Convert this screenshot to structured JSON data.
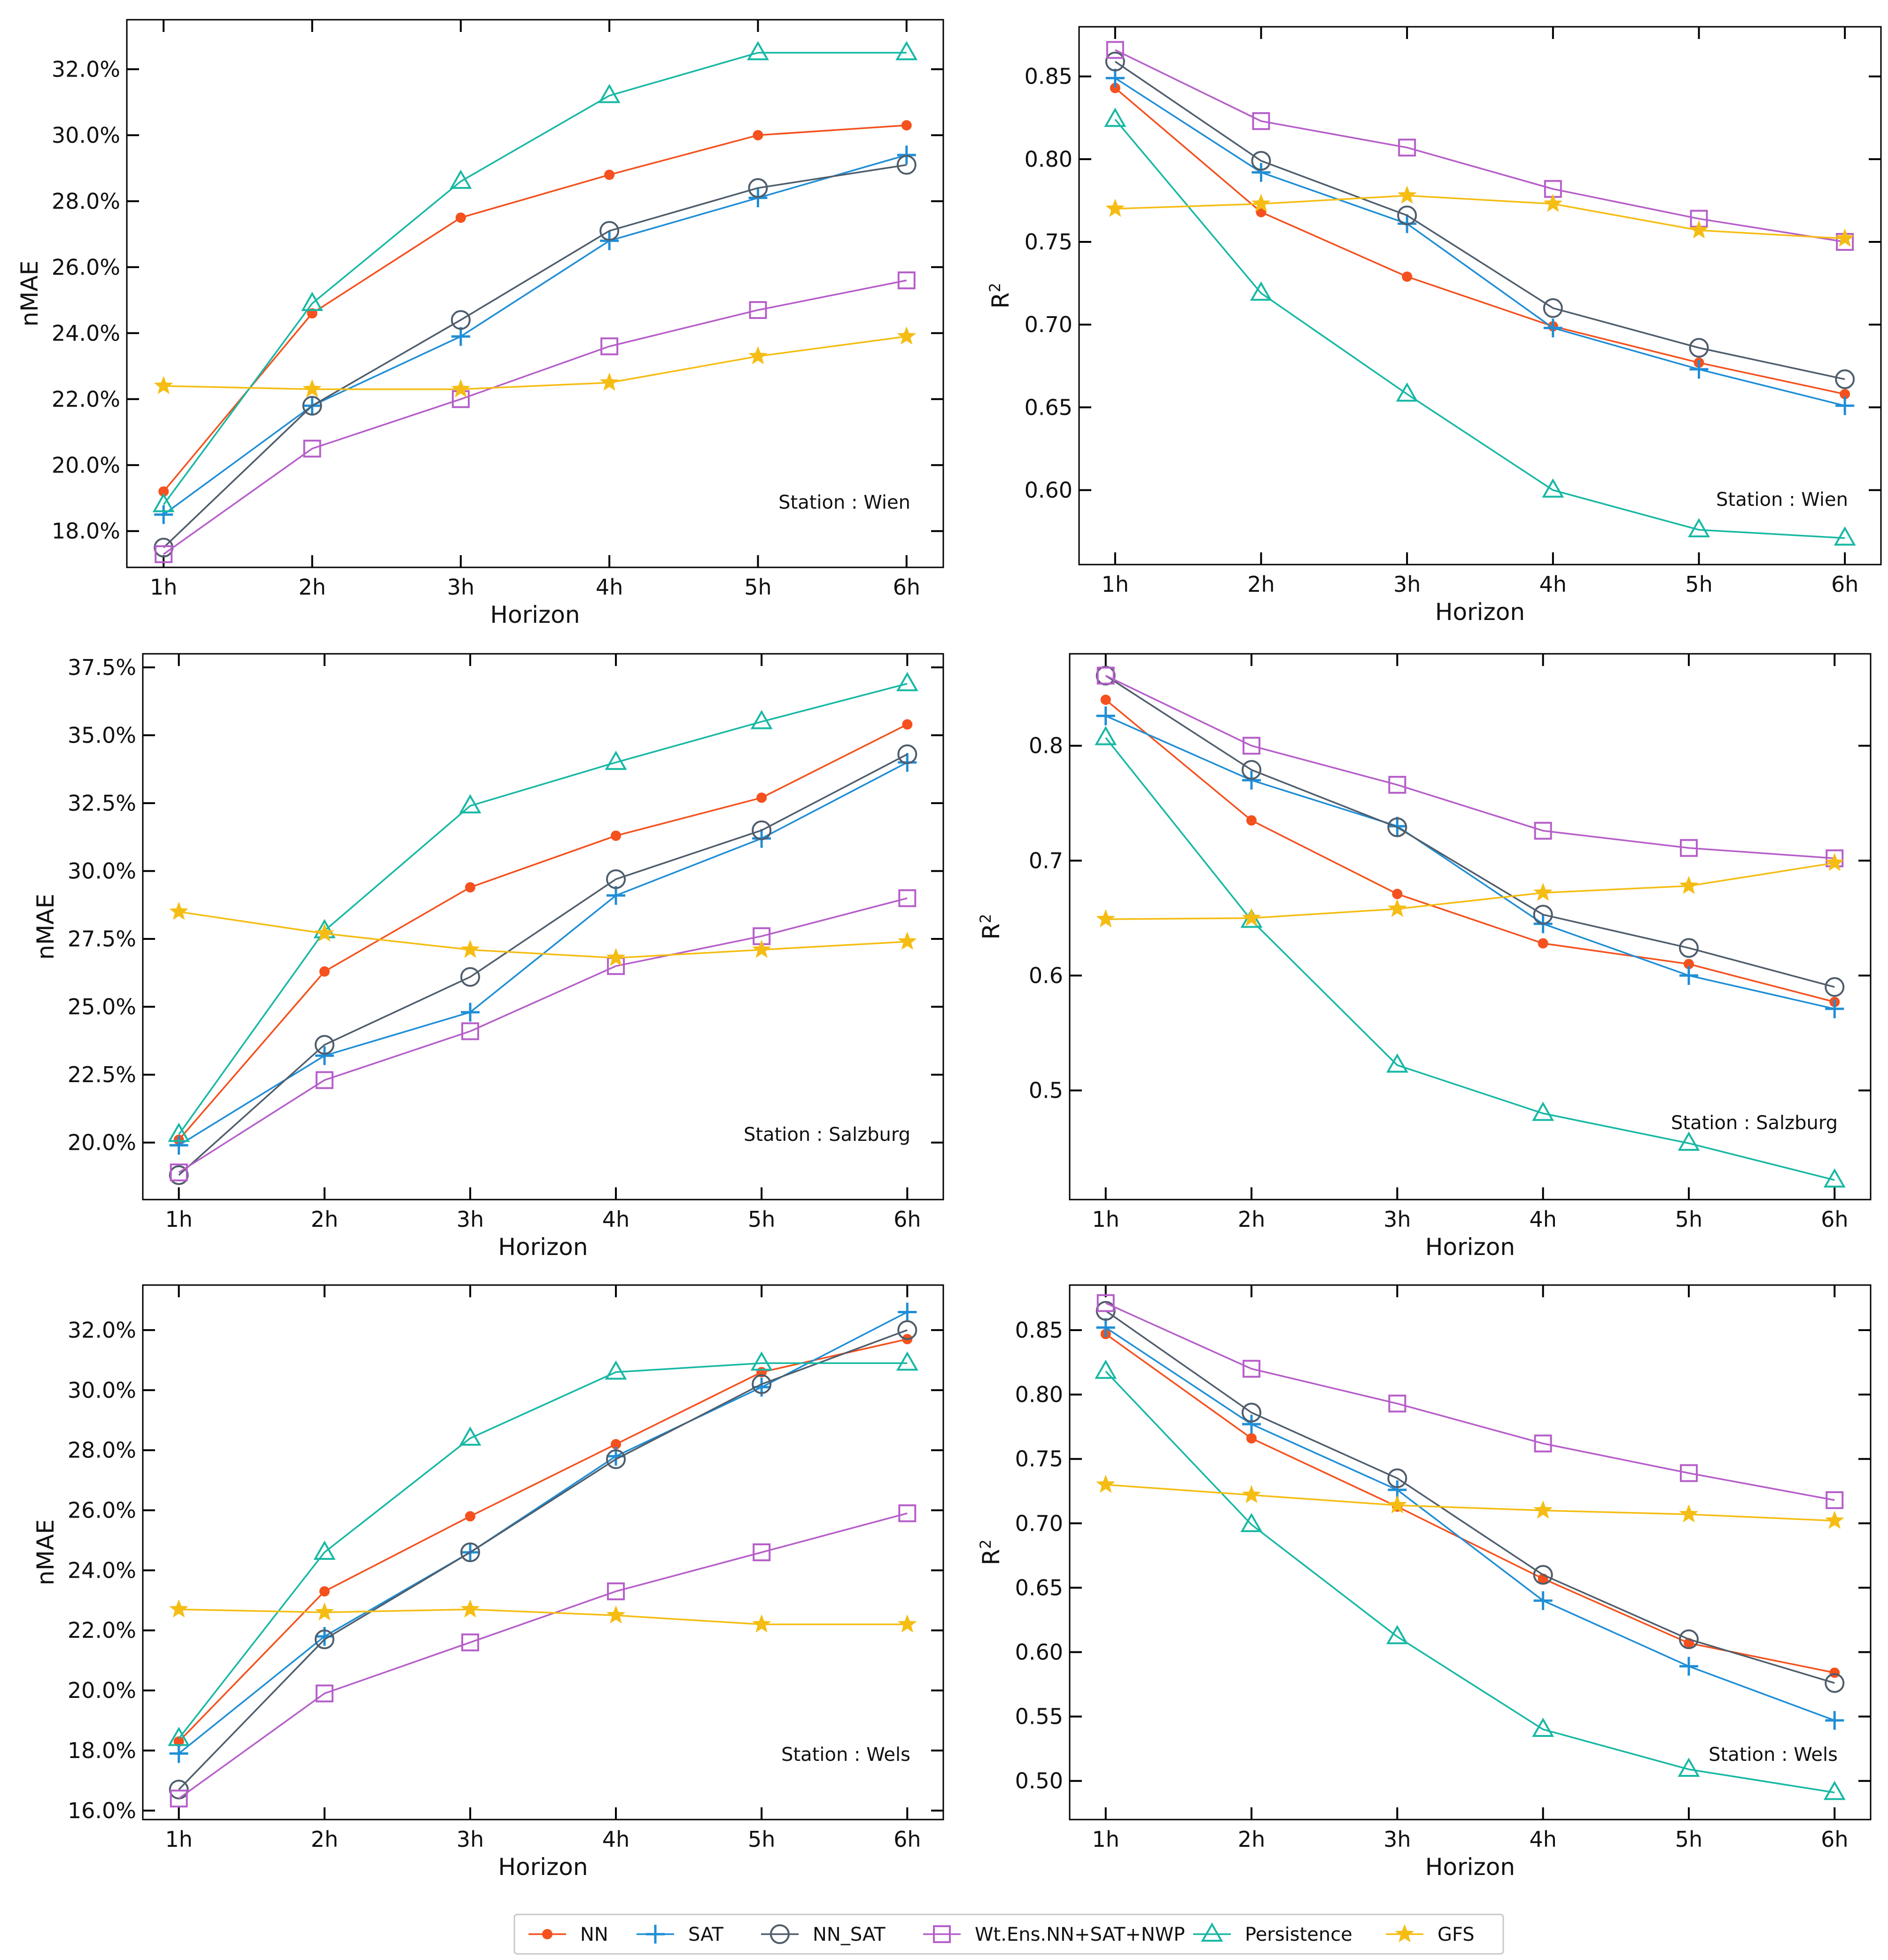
{
  "series_styles": [
    {
      "name": "NN",
      "color": "#f4511e",
      "marker": "dot"
    },
    {
      "name": "SAT",
      "color": "#1f8ed6",
      "marker": "plus"
    },
    {
      "name": "NN_SAT",
      "color": "#4f5d6b",
      "marker": "circle"
    },
    {
      "name": "Wt.Ens.NN+SAT+NWP",
      "color": "#b65ec9",
      "marker": "square"
    },
    {
      "name": "Persistence",
      "color": "#17b8a4",
      "marker": "triangle"
    },
    {
      "name": "GFS",
      "color": "#f5bd14",
      "marker": "star"
    }
  ],
  "chart_data": [
    {
      "type": "line",
      "id": "wien-nmae",
      "station": "Station : Wien",
      "xlabel": "Horizon",
      "ylabel": "nMAE",
      "categories": [
        "1h",
        "2h",
        "3h",
        "4h",
        "5h",
        "6h"
      ],
      "ylim": [
        16.9,
        33.5
      ],
      "yticks": [
        18,
        20,
        22,
        24,
        26,
        28,
        30,
        32
      ],
      "ytick_labels": [
        "18.0%",
        "20.0%",
        "22.0%",
        "24.0%",
        "26.0%",
        "28.0%",
        "30.0%",
        "32.0%"
      ],
      "series": [
        {
          "name": "NN",
          "values": [
            19.2,
            24.6,
            27.5,
            28.8,
            30.0,
            30.3
          ]
        },
        {
          "name": "SAT",
          "values": [
            18.5,
            21.8,
            23.9,
            26.8,
            28.1,
            29.4
          ]
        },
        {
          "name": "NN_SAT",
          "values": [
            17.5,
            21.8,
            24.4,
            27.1,
            28.4,
            29.1
          ]
        },
        {
          "name": "Wt.Ens.NN+SAT+NWP",
          "values": [
            17.3,
            20.5,
            22.0,
            23.6,
            24.7,
            25.6
          ]
        },
        {
          "name": "Persistence",
          "values": [
            18.8,
            24.9,
            28.6,
            31.2,
            32.5,
            32.5
          ]
        },
        {
          "name": "GFS",
          "values": [
            22.4,
            22.3,
            22.3,
            22.5,
            23.3,
            23.9
          ]
        }
      ]
    },
    {
      "type": "line",
      "id": "wien-r2",
      "station": "Station : Wien",
      "xlabel": "Horizon",
      "ylabel": "R",
      "categories": [
        "1h",
        "2h",
        "3h",
        "4h",
        "5h",
        "6h"
      ],
      "ylim": [
        0.555,
        0.88
      ],
      "yticks": [
        0.6,
        0.65,
        0.7,
        0.75,
        0.8,
        0.85
      ],
      "ytick_labels": [
        "0.60",
        "0.65",
        "0.70",
        "0.75",
        "0.80",
        "0.85"
      ],
      "series": [
        {
          "name": "NN",
          "values": [
            0.843,
            0.768,
            0.729,
            0.699,
            0.677,
            0.658
          ]
        },
        {
          "name": "SAT",
          "values": [
            0.849,
            0.792,
            0.761,
            0.698,
            0.673,
            0.651
          ]
        },
        {
          "name": "NN_SAT",
          "values": [
            0.859,
            0.799,
            0.766,
            0.71,
            0.686,
            0.667
          ]
        },
        {
          "name": "Wt.Ens.NN+SAT+NWP",
          "values": [
            0.866,
            0.823,
            0.807,
            0.782,
            0.764,
            0.75
          ]
        },
        {
          "name": "Persistence",
          "values": [
            0.824,
            0.719,
            0.658,
            0.6,
            0.576,
            0.571
          ]
        },
        {
          "name": "GFS",
          "values": [
            0.77,
            0.773,
            0.778,
            0.773,
            0.757,
            0.752
          ]
        }
      ]
    },
    {
      "type": "line",
      "id": "salzburg-nmae",
      "station": "Station : Salzburg",
      "xlabel": "Horizon",
      "ylabel": "nMAE",
      "categories": [
        "1h",
        "2h",
        "3h",
        "4h",
        "5h",
        "6h"
      ],
      "ylim": [
        17.9,
        38.0
      ],
      "yticks": [
        20,
        22.5,
        25,
        27.5,
        30,
        32.5,
        35,
        37.5
      ],
      "ytick_labels": [
        "20.0%",
        "22.5%",
        "25.0%",
        "27.5%",
        "30.0%",
        "32.5%",
        "35.0%",
        "37.5%"
      ],
      "series": [
        {
          "name": "NN",
          "values": [
            20.1,
            26.3,
            29.4,
            31.3,
            32.7,
            35.4
          ]
        },
        {
          "name": "SAT",
          "values": [
            19.9,
            23.2,
            24.8,
            29.1,
            31.2,
            34.0
          ]
        },
        {
          "name": "NN_SAT",
          "values": [
            18.8,
            23.6,
            26.1,
            29.7,
            31.5,
            34.3
          ]
        },
        {
          "name": "Wt.Ens.NN+SAT+NWP",
          "values": [
            18.9,
            22.3,
            24.1,
            26.5,
            27.6,
            29.0
          ]
        },
        {
          "name": "Persistence",
          "values": [
            20.3,
            27.8,
            32.4,
            34.0,
            35.5,
            36.9
          ]
        },
        {
          "name": "GFS",
          "values": [
            28.5,
            27.7,
            27.1,
            26.8,
            27.1,
            27.4
          ]
        }
      ]
    },
    {
      "type": "line",
      "id": "salzburg-r2",
      "station": "Station : Salzburg",
      "xlabel": "Horizon",
      "ylabel": "R",
      "categories": [
        "1h",
        "2h",
        "3h",
        "4h",
        "5h",
        "6h"
      ],
      "ylim": [
        0.405,
        0.88
      ],
      "yticks": [
        0.5,
        0.6,
        0.7,
        0.8
      ],
      "ytick_labels": [
        "0.5",
        "0.6",
        "0.7",
        "0.8"
      ],
      "series": [
        {
          "name": "NN",
          "values": [
            0.84,
            0.735,
            0.671,
            0.628,
            0.61,
            0.577
          ]
        },
        {
          "name": "SAT",
          "values": [
            0.826,
            0.77,
            0.73,
            0.645,
            0.6,
            0.571
          ]
        },
        {
          "name": "NN_SAT",
          "values": [
            0.861,
            0.779,
            0.729,
            0.653,
            0.624,
            0.59
          ]
        },
        {
          "name": "Wt.Ens.NN+SAT+NWP",
          "values": [
            0.861,
            0.8,
            0.766,
            0.726,
            0.711,
            0.702
          ]
        },
        {
          "name": "Persistence",
          "values": [
            0.807,
            0.648,
            0.522,
            0.48,
            0.454,
            0.422
          ]
        },
        {
          "name": "GFS",
          "values": [
            0.649,
            0.65,
            0.658,
            0.672,
            0.678,
            0.698
          ]
        }
      ]
    },
    {
      "type": "line",
      "id": "wels-nmae",
      "station": "Station : Wels",
      "xlabel": "Horizon",
      "ylabel": "nMAE",
      "categories": [
        "1h",
        "2h",
        "3h",
        "4h",
        "5h",
        "6h"
      ],
      "ylim": [
        15.7,
        33.5
      ],
      "yticks": [
        16,
        18,
        20,
        22,
        24,
        26,
        28,
        30,
        32
      ],
      "ytick_labels": [
        "16.0%",
        "18.0%",
        "20.0%",
        "22.0%",
        "24.0%",
        "26.0%",
        "28.0%",
        "30.0%",
        "32.0%"
      ],
      "series": [
        {
          "name": "NN",
          "values": [
            18.3,
            23.3,
            25.8,
            28.2,
            30.6,
            31.7
          ]
        },
        {
          "name": "SAT",
          "values": [
            17.9,
            21.8,
            24.6,
            27.8,
            30.1,
            32.6
          ]
        },
        {
          "name": "NN_SAT",
          "values": [
            16.7,
            21.7,
            24.6,
            27.7,
            30.2,
            32.0
          ]
        },
        {
          "name": "Wt.Ens.NN+SAT+NWP",
          "values": [
            16.4,
            19.9,
            21.6,
            23.3,
            24.6,
            25.9
          ]
        },
        {
          "name": "Persistence",
          "values": [
            18.4,
            24.6,
            28.4,
            30.6,
            30.9,
            30.9
          ]
        },
        {
          "name": "GFS",
          "values": [
            22.7,
            22.6,
            22.7,
            22.5,
            22.2,
            22.2
          ]
        }
      ]
    },
    {
      "type": "line",
      "id": "wels-r2",
      "station": "Station : Wels",
      "xlabel": "Horizon",
      "ylabel": "R",
      "categories": [
        "1h",
        "2h",
        "3h",
        "4h",
        "5h",
        "6h"
      ],
      "ylim": [
        0.47,
        0.885
      ],
      "yticks": [
        0.5,
        0.55,
        0.6,
        0.65,
        0.7,
        0.75,
        0.8,
        0.85
      ],
      "ytick_labels": [
        "0.50",
        "0.55",
        "0.60",
        "0.65",
        "0.70",
        "0.75",
        "0.80",
        "0.85"
      ],
      "series": [
        {
          "name": "NN",
          "values": [
            0.847,
            0.766,
            0.713,
            0.657,
            0.607,
            0.584
          ]
        },
        {
          "name": "SAT",
          "values": [
            0.852,
            0.777,
            0.726,
            0.64,
            0.589,
            0.547
          ]
        },
        {
          "name": "NN_SAT",
          "values": [
            0.865,
            0.786,
            0.735,
            0.66,
            0.61,
            0.576
          ]
        },
        {
          "name": "Wt.Ens.NN+SAT+NWP",
          "values": [
            0.871,
            0.82,
            0.793,
            0.762,
            0.739,
            0.718
          ]
        },
        {
          "name": "Persistence",
          "values": [
            0.818,
            0.699,
            0.612,
            0.54,
            0.509,
            0.491
          ]
        },
        {
          "name": "GFS",
          "values": [
            0.73,
            0.722,
            0.714,
            0.71,
            0.707,
            0.702
          ]
        }
      ]
    }
  ],
  "r2_superscript": "2"
}
